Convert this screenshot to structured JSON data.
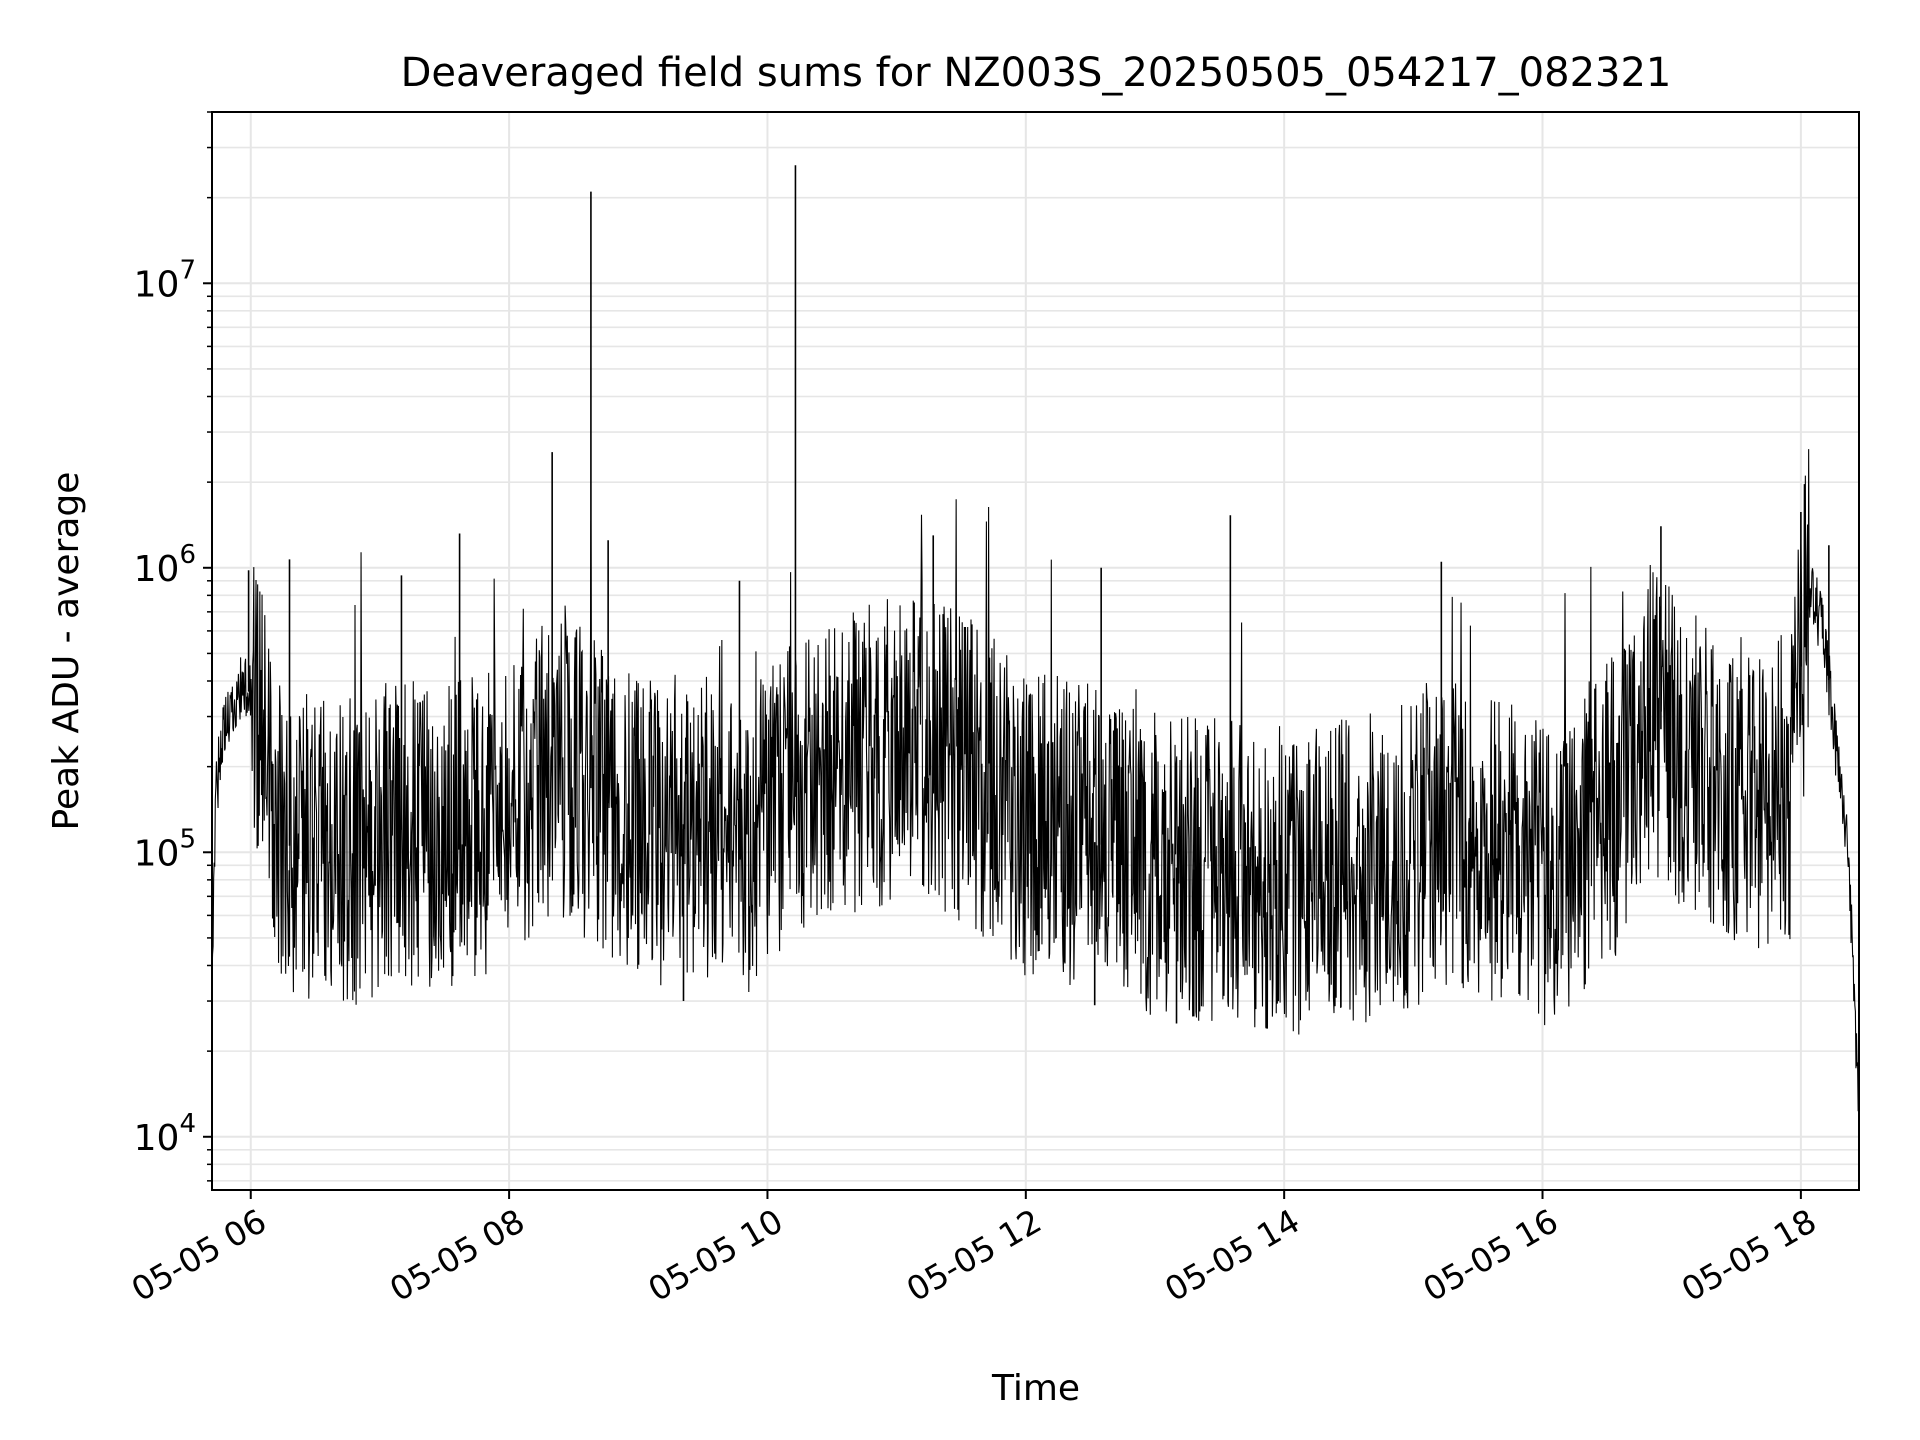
{
  "chart_data": {
    "type": "line",
    "title": "Deaveraged field sums for NZ003S_20250505_054217_082321",
    "xlabel": "Time",
    "ylabel": "Peak ADU - average",
    "xlim": [
      "2025-05-05T05:42",
      "2025-05-05T18:27"
    ],
    "ylim": [
      6500,
      40000000
    ],
    "yscale": "log",
    "grid": true,
    "legend": "none",
    "colors": {
      "line": "#000000",
      "grid": "#e6e6e6",
      "axes": "#000000"
    },
    "x_ticks": [
      {
        "time": "2025-05-05T06:00",
        "label": "05-05 06"
      },
      {
        "time": "2025-05-05T08:00",
        "label": "05-05 08"
      },
      {
        "time": "2025-05-05T10:00",
        "label": "05-05 10"
      },
      {
        "time": "2025-05-05T12:00",
        "label": "05-05 12"
      },
      {
        "time": "2025-05-05T14:00",
        "label": "05-05 14"
      },
      {
        "time": "2025-05-05T16:00",
        "label": "05-05 16"
      },
      {
        "time": "2025-05-05T18:00",
        "label": "05-05 18"
      }
    ],
    "y_ticks": [
      {
        "value": 10000,
        "base": "10",
        "exp": "4"
      },
      {
        "value": 100000,
        "base": "10",
        "exp": "5"
      },
      {
        "value": 1000000,
        "base": "10",
        "exp": "6"
      },
      {
        "value": 10000000,
        "base": "10",
        "exp": "7"
      }
    ],
    "series": [
      {
        "x": [
          "2025-05-05T05:42",
          "2025-05-05T05:44",
          "2025-05-05T05:48",
          "2025-05-05T05:52",
          "2025-05-05T05:56",
          "2025-05-05T05:58",
          "2025-05-05T06:02",
          "2025-05-05T06:06",
          "2025-05-05T06:10",
          "2025-05-05T06:20",
          "2025-05-05T06:35",
          "2025-05-05T06:50",
          "2025-05-05T07:10",
          "2025-05-05T07:30",
          "2025-05-05T07:50",
          "2025-05-05T08:10",
          "2025-05-05T08:30",
          "2025-05-05T08:50",
          "2025-05-05T09:10",
          "2025-05-05T09:30",
          "2025-05-05T09:50",
          "2025-05-05T10:10",
          "2025-05-05T10:30",
          "2025-05-05T10:50",
          "2025-05-05T11:10",
          "2025-05-05T11:30",
          "2025-05-05T11:45",
          "2025-05-05T12:00",
          "2025-05-05T12:30",
          "2025-05-05T13:00",
          "2025-05-05T13:30",
          "2025-05-05T14:00",
          "2025-05-05T14:30",
          "2025-05-05T15:00",
          "2025-05-05T15:10",
          "2025-05-05T15:30",
          "2025-05-05T15:50",
          "2025-05-05T16:05",
          "2025-05-05T16:20",
          "2025-05-05T16:40",
          "2025-05-05T16:50",
          "2025-05-05T17:05",
          "2025-05-05T17:25",
          "2025-05-05T17:45",
          "2025-05-05T17:55",
          "2025-05-05T18:00",
          "2025-05-05T18:04",
          "2025-05-05T18:10",
          "2025-05-05T18:16",
          "2025-05-05T18:22",
          "2025-05-05T18:27"
        ],
        "y": [
          40000,
          170000,
          280000,
          320000,
          400000,
          380000,
          330000,
          250000,
          130000,
          100000,
          110000,
          100000,
          120000,
          110000,
          130000,
          180000,
          190000,
          140000,
          120000,
          130000,
          110000,
          150000,
          200000,
          220000,
          230000,
          200000,
          160000,
          130000,
          110000,
          90000,
          85000,
          80000,
          85000,
          95000,
          120000,
          110000,
          90000,
          80000,
          110000,
          170000,
          300000,
          220000,
          170000,
          160000,
          170000,
          450000,
          800000,
          650000,
          250000,
          100000,
          12000
        ]
      }
    ],
    "spikes": [
      {
        "time": "2025-05-05T05:59",
        "value": 980000
      },
      {
        "time": "2025-05-05T06:18",
        "value": 1070000
      },
      {
        "time": "2025-05-05T07:10",
        "value": 940000
      },
      {
        "time": "2025-05-05T07:37",
        "value": 1320000
      },
      {
        "time": "2025-05-05T08:20",
        "value": 2550000
      },
      {
        "time": "2025-05-05T08:38",
        "value": 21000000
      },
      {
        "time": "2025-05-05T08:46",
        "value": 1250000
      },
      {
        "time": "2025-05-05T09:47",
        "value": 900000
      },
      {
        "time": "2025-05-05T10:13",
        "value": 26000000
      },
      {
        "time": "2025-05-05T11:17",
        "value": 1300000
      },
      {
        "time": "2025-05-05T12:35",
        "value": 1000000
      },
      {
        "time": "2025-05-05T13:35",
        "value": 1530000
      },
      {
        "time": "2025-05-05T15:13",
        "value": 1050000
      },
      {
        "time": "2025-05-05T16:55",
        "value": 1400000
      },
      {
        "time": "2025-05-05T18:00",
        "value": 1570000
      },
      {
        "time": "2025-05-05T18:13",
        "value": 1200000
      }
    ],
    "dips": [
      {
        "time": "2025-05-05T09:21",
        "value": 30000
      },
      {
        "time": "2025-05-05T12:32",
        "value": 29000
      },
      {
        "time": "2025-05-05T13:10",
        "value": 25000
      },
      {
        "time": "2025-05-05T13:18",
        "value": 26500
      },
      {
        "time": "2025-05-05T14:57",
        "value": 32000
      }
    ]
  }
}
